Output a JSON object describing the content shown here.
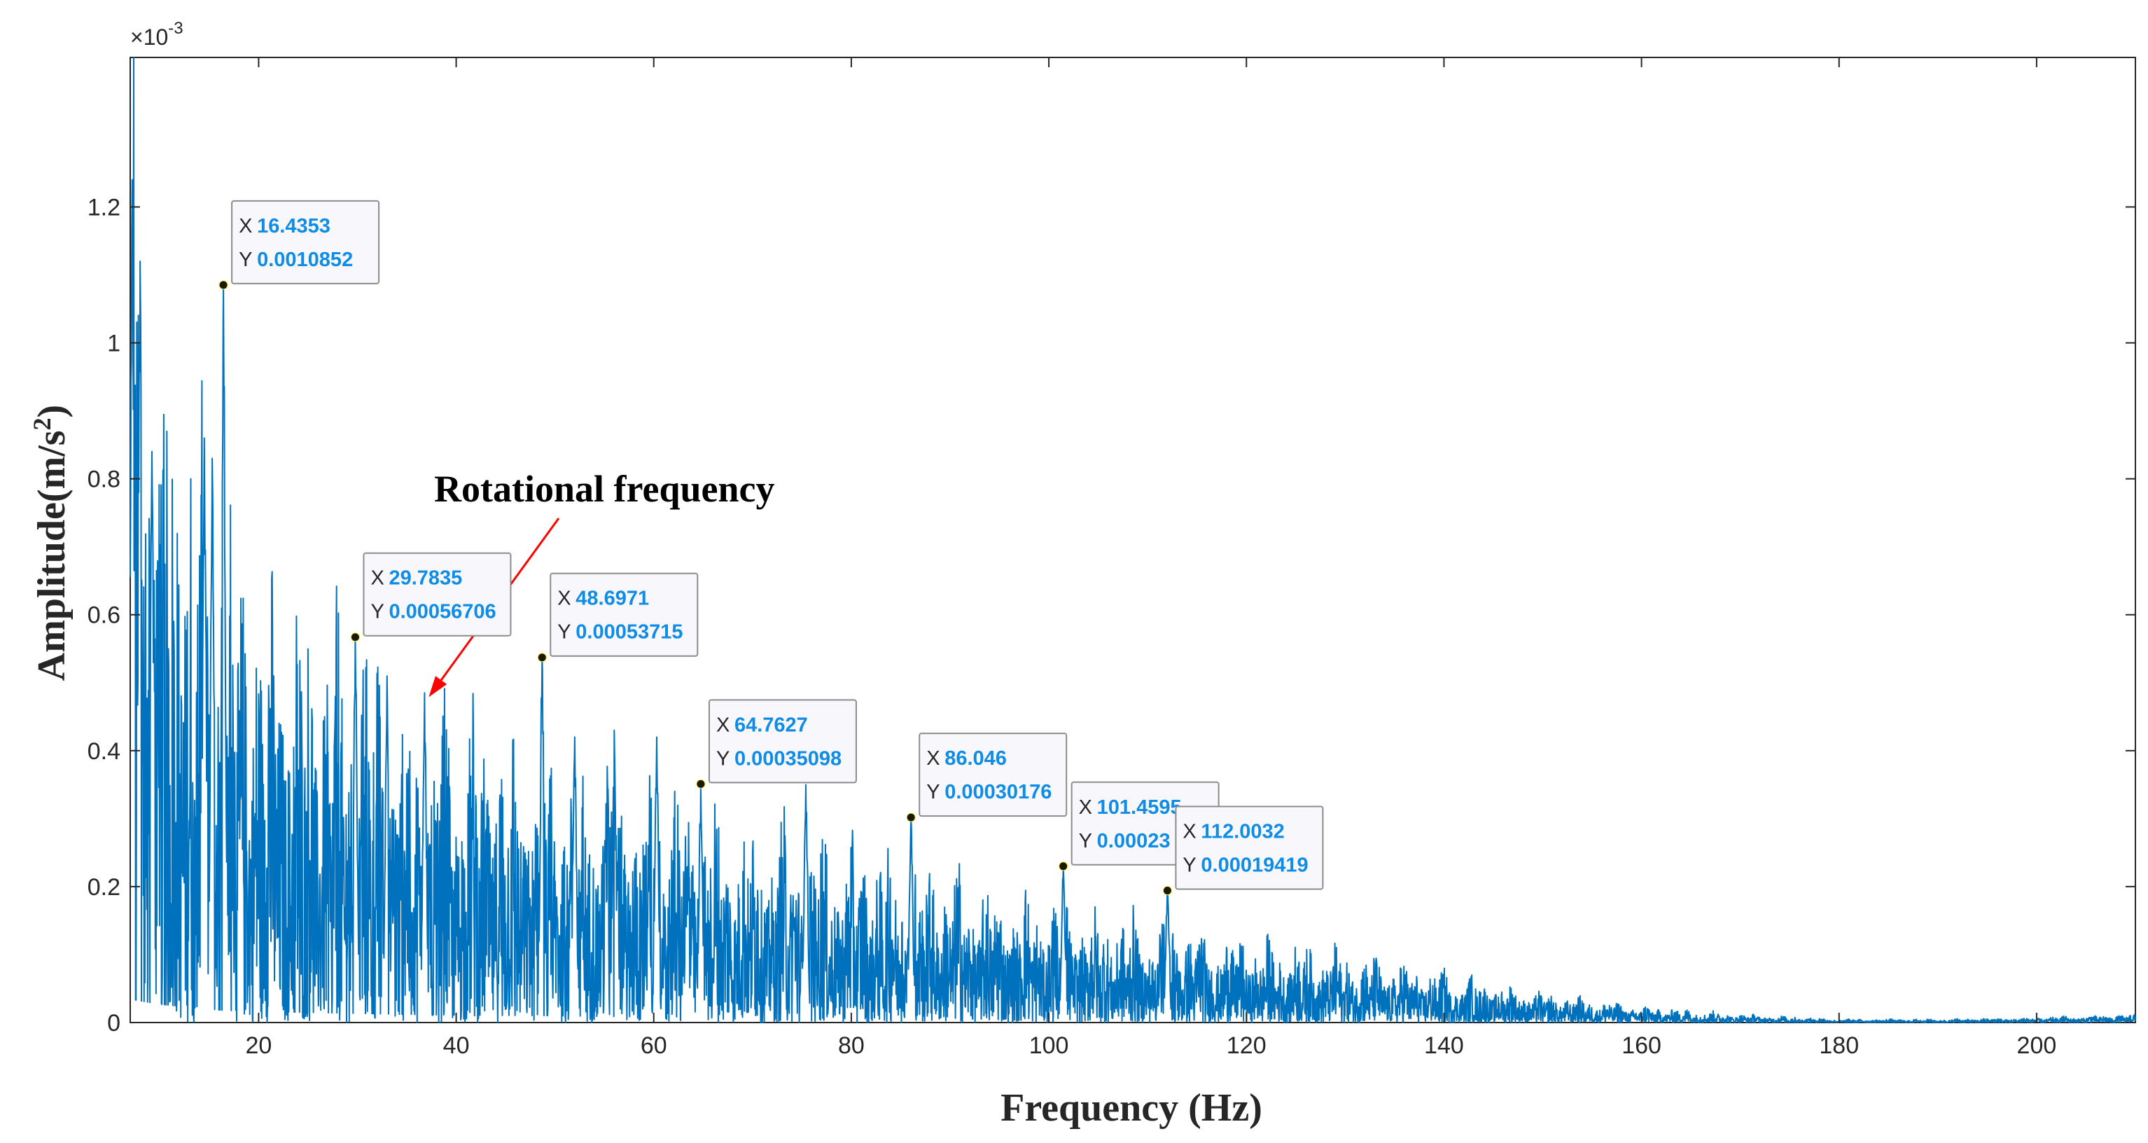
{
  "chart_data": {
    "type": "line",
    "xlabel": "Frequency (Hz)",
    "ylabel_main": "Amplitude(m/s",
    "ylabel_sup": "2",
    "ylabel_close": ")",
    "xlim": [
      7,
      210
    ],
    "ylim": [
      0,
      0.00142
    ],
    "y_scale_exponent": "×10",
    "y_scale_power": "-3",
    "x_ticks": [
      20,
      40,
      60,
      80,
      100,
      120,
      140,
      160,
      180,
      200
    ],
    "x_tick_labels": [
      "20",
      "40",
      "60",
      "80",
      "100",
      "120",
      "140",
      "160",
      "180",
      "200"
    ],
    "y_ticks": [
      0,
      0.0002,
      0.0004,
      0.0006,
      0.0008,
      0.001,
      0.0012
    ],
    "y_tick_labels": [
      "0",
      "0.2",
      "0.4",
      "0.6",
      "0.8",
      "1",
      "1.2"
    ],
    "series": [
      {
        "name": "spectrum",
        "color": "#0072BD"
      }
    ],
    "envelope": {
      "x": [
        7,
        10,
        13,
        16.4,
        20,
        25,
        29.8,
        35,
        40,
        48.7,
        55,
        64.8,
        75,
        86,
        95,
        101.5,
        112,
        120,
        130,
        140,
        150,
        160,
        170,
        180,
        190,
        200,
        210
      ],
      "y": [
        0.00115,
        0.0009,
        0.00075,
        0.0006,
        0.00055,
        0.0005,
        0.00045,
        0.0004,
        0.00037,
        0.00034,
        0.0003,
        0.00026,
        0.00023,
        0.0002,
        0.00016,
        0.00014,
        0.00012,
        0.0001,
        8.5e-05,
        6e-05,
        3.5e-05,
        2e-05,
        1e-05,
        4e-06,
        4e-06,
        6e-06,
        1e-05
      ]
    },
    "peaks": [
      {
        "x": 7.2,
        "y": 0.00124
      },
      {
        "x": 8.0,
        "y": 0.00112
      },
      {
        "x": 9.2,
        "y": 0.00084
      },
      {
        "x": 14.5,
        "y": 0.00086
      },
      {
        "x": 15.3,
        "y": 0.00083
      },
      {
        "x": 16.4353,
        "y": 0.0010852
      },
      {
        "x": 29.7835,
        "y": 0.00056706
      },
      {
        "x": 33.0,
        "y": 0.00051
      },
      {
        "x": 36.8,
        "y": 0.000485
      },
      {
        "x": 48.6971,
        "y": 0.00053715
      },
      {
        "x": 52.0,
        "y": 0.00042
      },
      {
        "x": 56.0,
        "y": 0.00043
      },
      {
        "x": 60.3,
        "y": 0.00042
      },
      {
        "x": 64.7627,
        "y": 0.00035098
      },
      {
        "x": 75.4,
        "y": 0.00035
      },
      {
        "x": 86.046,
        "y": 0.00030176
      },
      {
        "x": 101.4595,
        "y": 0.00023
      },
      {
        "x": 112.0032,
        "y": 0.00019419
      }
    ],
    "datatips": [
      {
        "x_key": "X",
        "y_key": "Y",
        "x_label": "16.4353",
        "y_label": "0.0010852",
        "x": 16.4353,
        "y": 0.0010852
      },
      {
        "x_key": "X",
        "y_key": "Y",
        "x_label": "29.7835",
        "y_label": "0.00056706",
        "x": 29.7835,
        "y": 0.00056706
      },
      {
        "x_key": "X",
        "y_key": "Y",
        "x_label": "48.6971",
        "y_label": "0.00053715",
        "x": 48.6971,
        "y": 0.00053715
      },
      {
        "x_key": "X",
        "y_key": "Y",
        "x_label": "64.7627",
        "y_label": "0.00035098",
        "x": 64.7627,
        "y": 0.00035098
      },
      {
        "x_key": "X",
        "y_key": "Y",
        "x_label": "86.046",
        "y_label": "0.00030176",
        "x": 86.046,
        "y": 0.00030176
      },
      {
        "x_key": "X",
        "y_key": "Y",
        "x_label": "101.4595",
        "y_label": "0.00023",
        "x": 101.4595,
        "y": 0.00023
      },
      {
        "x_key": "X",
        "y_key": "Y",
        "x_label": "112.0032",
        "y_label": "0.00019419",
        "x": 112.0032,
        "y": 0.00019419
      }
    ],
    "annotation": {
      "text": "Rotational frequency",
      "arrow_to_x": 36.8,
      "arrow_to_y": 0.000485,
      "arrow_color": "#FF0000"
    },
    "tip_value_color": "#0F8CE6",
    "marker_color": "#1A1A00"
  }
}
